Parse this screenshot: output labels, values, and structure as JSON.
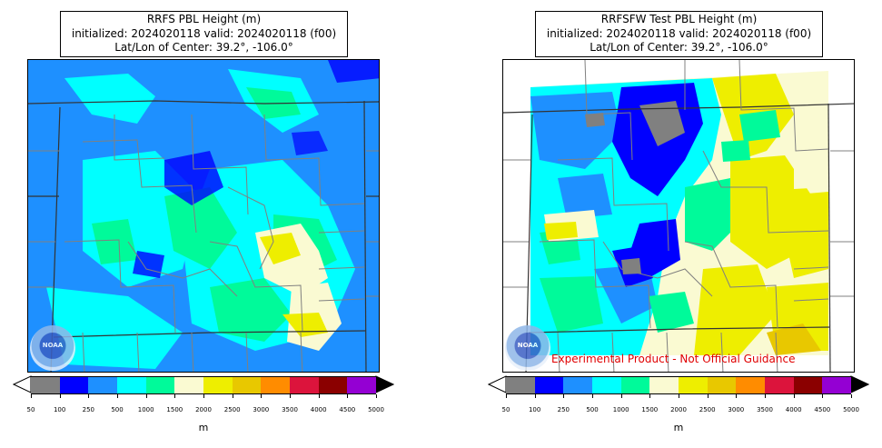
{
  "panels": [
    {
      "title_line1": "RRFS PBL Height (m)",
      "title_line2": "initialized: 2024020118 valid: 2024020118 (f00)",
      "title_line3": "Lat/Lon of Center: 39.2°, -106.0°",
      "logo_text": "NOAA",
      "colorbar_unit": "m"
    },
    {
      "title_line1": "RRFSFW Test PBL Height (m)",
      "title_line2": "initialized: 2024020118 valid: 2024020118 (f00)",
      "title_line3": "Lat/Lon of Center: 39.2°, -106.0°",
      "logo_text": "NOAA",
      "colorbar_unit": "m",
      "disclaimer": "Experimental Product - Not Official Guidance"
    }
  ],
  "colorbar": {
    "levels": [
      "50",
      "100",
      "250",
      "500",
      "1000",
      "1500",
      "2000",
      "2500",
      "3000",
      "3500",
      "4000",
      "4500",
      "5000"
    ],
    "colors": [
      "#808080",
      "#0000ff",
      "#1e90ff",
      "#00ffff",
      "#00fa9a",
      "#fafad2",
      "#eeee00",
      "#e8c800",
      "#ff8c00",
      "#dc143c",
      "#8b0000",
      "#9400d3"
    ],
    "under_color": "#ffffff",
    "over_color": "#000000"
  },
  "map_colors": {
    "state_border": "#333333",
    "county_border": "#808080"
  }
}
